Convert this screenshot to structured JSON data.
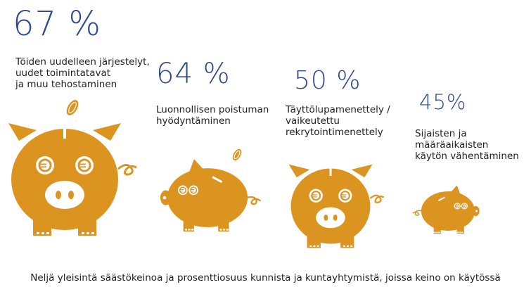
{
  "chart_data": {
    "type": "bar",
    "categories": [
      "Töiden uudelleen järjestelyt, uudet toimintatavat ja muu tehostaminen",
      "Luonnollisen poistuman hyödyntäminen",
      "Täyttölupamenettely / vaikeutettu rekrytointimenettely",
      "Sijaisten ja määräaikaisten käytön vähentäminen"
    ],
    "values": [
      67,
      64,
      50,
      45
    ],
    "value_labels": [
      "67 %",
      "64 %",
      "50 %",
      "45%"
    ],
    "label_lines": [
      [
        "Töiden uudelleen järjestelyt,",
        "uudet toimintatavat",
        "ja muu tehostaminen"
      ],
      [
        "Luonnollisen poistuman",
        "hyödyntäminen"
      ],
      [
        "Täyttölupamenettely /",
        "vaikeutettu",
        "rekrytointimenettely"
      ],
      [
        "Sijaisten ja",
        "määräaikaisten",
        "käytön vähentäminen"
      ]
    ],
    "caption": "Neljä yleisintä säästökeinoa ja prosenttiosuus kunnista ja kuntayhtymistä, joissa keino on käytössä",
    "unit": "%"
  },
  "colors": {
    "pig": "#dc9420",
    "value_text": "#2e4a8c",
    "text": "#222222",
    "background": "#ffffff"
  }
}
